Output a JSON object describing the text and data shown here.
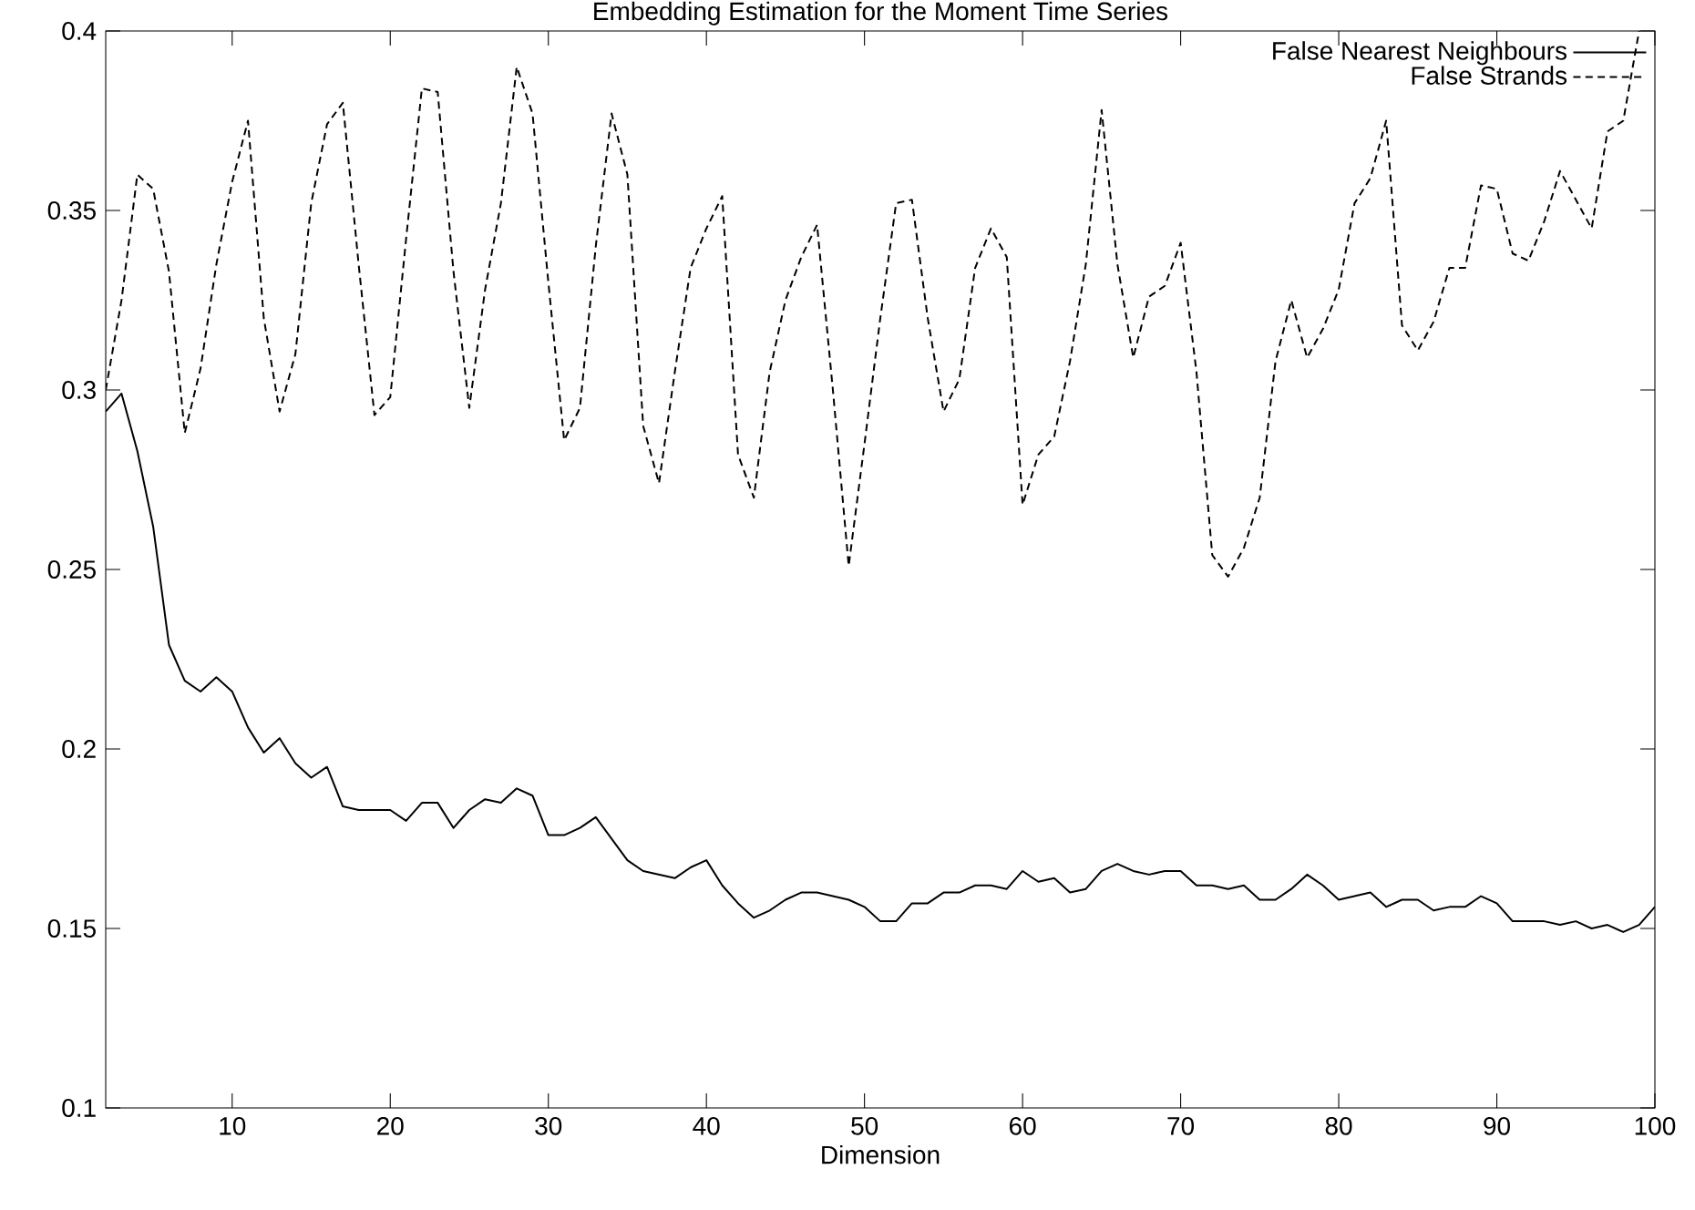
{
  "chart_data": {
    "type": "line",
    "title": "Embedding Estimation for the Moment Time Series",
    "xlabel": "Dimension",
    "x": [
      2,
      3,
      4,
      5,
      6,
      7,
      8,
      9,
      10,
      11,
      12,
      13,
      14,
      15,
      16,
      17,
      18,
      19,
      20,
      21,
      22,
      23,
      24,
      25,
      26,
      27,
      28,
      29,
      30,
      31,
      32,
      33,
      34,
      35,
      36,
      37,
      38,
      39,
      40,
      41,
      42,
      43,
      44,
      45,
      46,
      47,
      48,
      49,
      50,
      51,
      52,
      53,
      54,
      55,
      56,
      57,
      58,
      59,
      60,
      61,
      62,
      63,
      64,
      65,
      66,
      67,
      68,
      69,
      70,
      71,
      72,
      73,
      74,
      75,
      76,
      77,
      78,
      79,
      80,
      81,
      82,
      83,
      84,
      85,
      86,
      87,
      88,
      89,
      90,
      91,
      92,
      93,
      94,
      95,
      96,
      97,
      98,
      99,
      100
    ],
    "series": [
      {
        "name": "False Nearest Neighbours",
        "color": "#000000",
        "line_style": "solid",
        "values": [
          0.294,
          0.299,
          0.283,
          0.262,
          0.229,
          0.219,
          0.216,
          0.22,
          0.216,
          0.206,
          0.199,
          0.203,
          0.196,
          0.192,
          0.195,
          0.184,
          0.183,
          0.183,
          0.183,
          0.18,
          0.185,
          0.185,
          0.178,
          0.183,
          0.186,
          0.185,
          0.189,
          0.187,
          0.176,
          0.176,
          0.178,
          0.181,
          0.175,
          0.169,
          0.166,
          0.165,
          0.164,
          0.167,
          0.169,
          0.162,
          0.157,
          0.153,
          0.155,
          0.158,
          0.16,
          0.16,
          0.159,
          0.158,
          0.156,
          0.152,
          0.152,
          0.157,
          0.157,
          0.16,
          0.16,
          0.162,
          0.162,
          0.161,
          0.166,
          0.163,
          0.164,
          0.16,
          0.161,
          0.166,
          0.168,
          0.166,
          0.165,
          0.166,
          0.166,
          0.162,
          0.162,
          0.161,
          0.162,
          0.158,
          0.158,
          0.161,
          0.165,
          0.162,
          0.158,
          0.159,
          0.16,
          0.156,
          0.158,
          0.158,
          0.155,
          0.156,
          0.156,
          0.159,
          0.157,
          0.152,
          0.152,
          0.152,
          0.151,
          0.152,
          0.15,
          0.151,
          0.149,
          0.151,
          0.156
        ]
      },
      {
        "name": "False Strands",
        "color": "#000000",
        "line_style": "dashed",
        "values": [
          0.3,
          0.325,
          0.36,
          0.356,
          0.333,
          0.288,
          0.306,
          0.335,
          0.358,
          0.375,
          0.32,
          0.294,
          0.31,
          0.352,
          0.374,
          0.38,
          0.335,
          0.293,
          0.298,
          0.342,
          0.384,
          0.383,
          0.333,
          0.295,
          0.328,
          0.352,
          0.39,
          0.377,
          0.33,
          0.286,
          0.295,
          0.34,
          0.377,
          0.36,
          0.29,
          0.274,
          0.305,
          0.334,
          0.345,
          0.354,
          0.282,
          0.27,
          0.305,
          0.325,
          0.337,
          0.346,
          0.3,
          0.251,
          0.285,
          0.32,
          0.352,
          0.353,
          0.32,
          0.294,
          0.303,
          0.334,
          0.345,
          0.337,
          0.268,
          0.282,
          0.287,
          0.308,
          0.335,
          0.378,
          0.335,
          0.309,
          0.326,
          0.329,
          0.341,
          0.305,
          0.254,
          0.248,
          0.256,
          0.27,
          0.308,
          0.325,
          0.309,
          0.317,
          0.328,
          0.352,
          0.359,
          0.375,
          0.318,
          0.311,
          0.319,
          0.334,
          0.334,
          0.357,
          0.356,
          0.338,
          0.336,
          0.347,
          0.361,
          0.353,
          0.345,
          0.372,
          0.375,
          0.4,
          null
        ]
      }
    ],
    "xlim": [
      2,
      100
    ],
    "ylim": [
      0.1,
      0.4
    ],
    "xticks": [
      10,
      20,
      30,
      40,
      50,
      60,
      70,
      80,
      90,
      100
    ],
    "yticks": [
      0.1,
      0.15,
      0.2,
      0.25,
      0.3,
      0.35,
      0.4
    ],
    "legend": "top right"
  }
}
